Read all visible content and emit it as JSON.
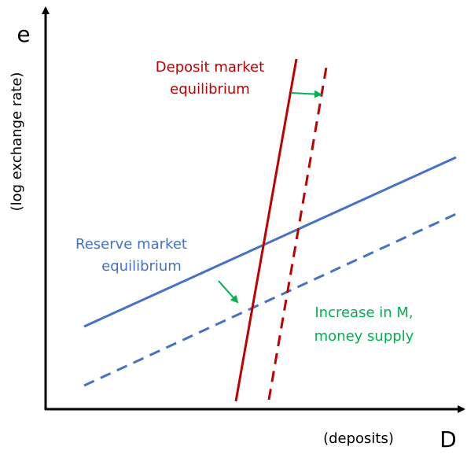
{
  "axes": {
    "y_label": "e",
    "y_sublabel": "(log exchange rate)",
    "x_label": "D",
    "x_sublabel": "(deposits)"
  },
  "labels": {
    "deposit_market": [
      "Deposit market",
      "equilibrium"
    ],
    "reserve_market": [
      "Reserve market",
      "equilibrium"
    ],
    "shift": [
      "Increase in M,",
      "money supply"
    ]
  }
}
